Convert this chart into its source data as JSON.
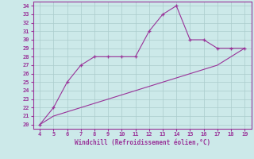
{
  "xlabel": "Windchill (Refroidissement éolien,°C)",
  "x_data": [
    4,
    5,
    6,
    7,
    8,
    9,
    10,
    11,
    12,
    13,
    14,
    15,
    16,
    17,
    18,
    19
  ],
  "windchill": [
    20,
    22,
    25,
    27,
    28,
    28,
    28,
    28,
    31,
    33,
    34,
    30,
    30,
    29,
    29,
    29
  ],
  "temperature": [
    20,
    21,
    21.5,
    22,
    22.5,
    23,
    23.5,
    24,
    24.5,
    25,
    25.5,
    26,
    26.5,
    27,
    28,
    29
  ],
  "line_color": "#993399",
  "bg_color": "#cce9e9",
  "grid_color": "#aacccc",
  "ylim": [
    19.5,
    34.5
  ],
  "xlim": [
    3.5,
    19.5
  ],
  "yticks": [
    20,
    21,
    22,
    23,
    24,
    25,
    26,
    27,
    28,
    29,
    30,
    31,
    32,
    33,
    34
  ],
  "xticks": [
    4,
    5,
    6,
    7,
    8,
    9,
    10,
    11,
    12,
    13,
    14,
    15,
    16,
    17,
    18,
    19
  ],
  "marker_x": [
    4,
    5,
    6,
    7,
    8,
    9,
    10,
    11,
    12,
    13,
    14,
    15,
    16,
    17,
    18,
    19
  ],
  "marker_y": [
    20,
    22,
    25,
    27,
    28,
    28,
    28,
    28,
    31,
    33,
    34,
    30,
    30,
    29,
    29,
    29
  ]
}
